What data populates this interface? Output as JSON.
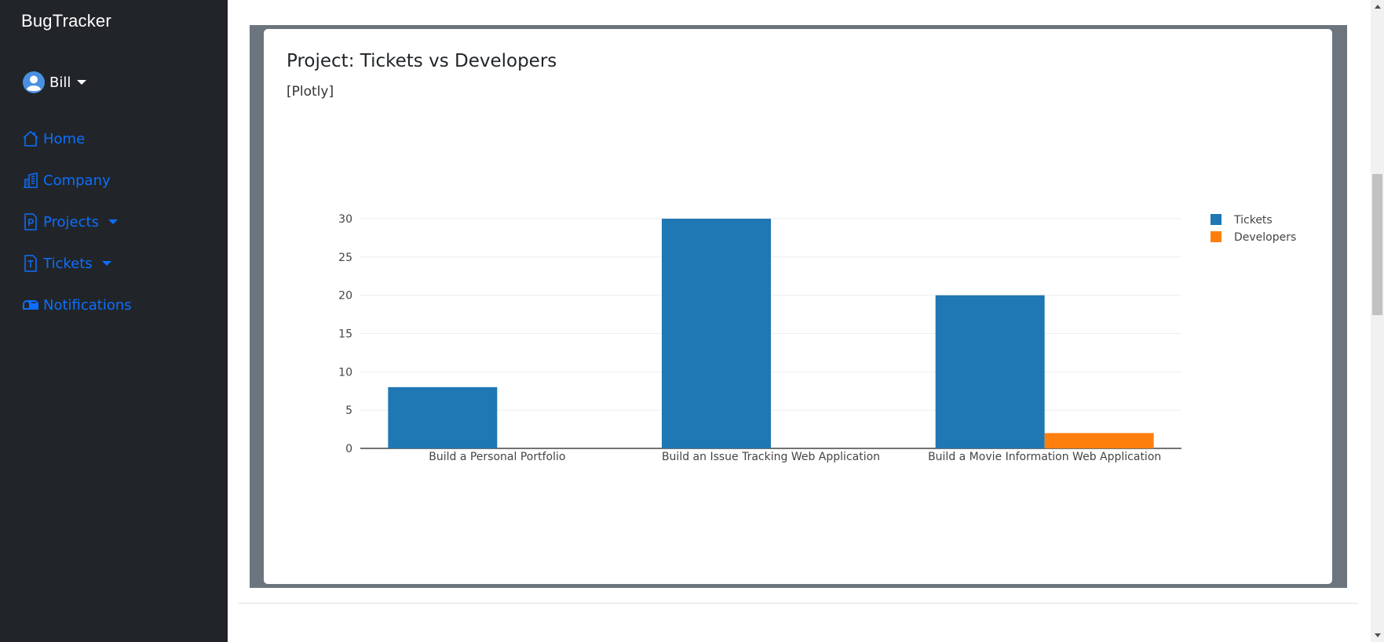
{
  "sidebar": {
    "brand": "BugTracker",
    "user": {
      "name": "Bill"
    },
    "items": [
      {
        "label": "Home",
        "icon": "house-icon"
      },
      {
        "label": "Company",
        "icon": "building-icon"
      },
      {
        "label": "Projects",
        "icon": "file-p-icon",
        "dropdown": true
      },
      {
        "label": "Tickets",
        "icon": "file-t-icon",
        "dropdown": true
      },
      {
        "label": "Notifications",
        "icon": "mailbox-icon"
      }
    ]
  },
  "card": {
    "title": "Project: Tickets vs Developers",
    "subtitle": "[Plotly]"
  },
  "colors": {
    "sidebar_bg": "#212529",
    "link": "#0d6efd",
    "frame": "#6c757d",
    "tickets": "#1f77b4",
    "developers": "#ff7f0e"
  },
  "chart_data": {
    "type": "bar",
    "categories": [
      "Build a Personal Portfolio",
      "Build an Issue Tracking Web Application",
      "Build a Movie Information Web Application"
    ],
    "series": [
      {
        "name": "Tickets",
        "values": [
          8,
          30,
          20
        ],
        "color": "#1f77b4"
      },
      {
        "name": "Developers",
        "values": [
          0,
          0,
          2
        ],
        "color": "#ff7f0e"
      }
    ],
    "ylim": [
      0,
      30
    ],
    "yticks": [
      0,
      5,
      10,
      15,
      20,
      25,
      30
    ],
    "grid": true,
    "legend": "top-right"
  }
}
